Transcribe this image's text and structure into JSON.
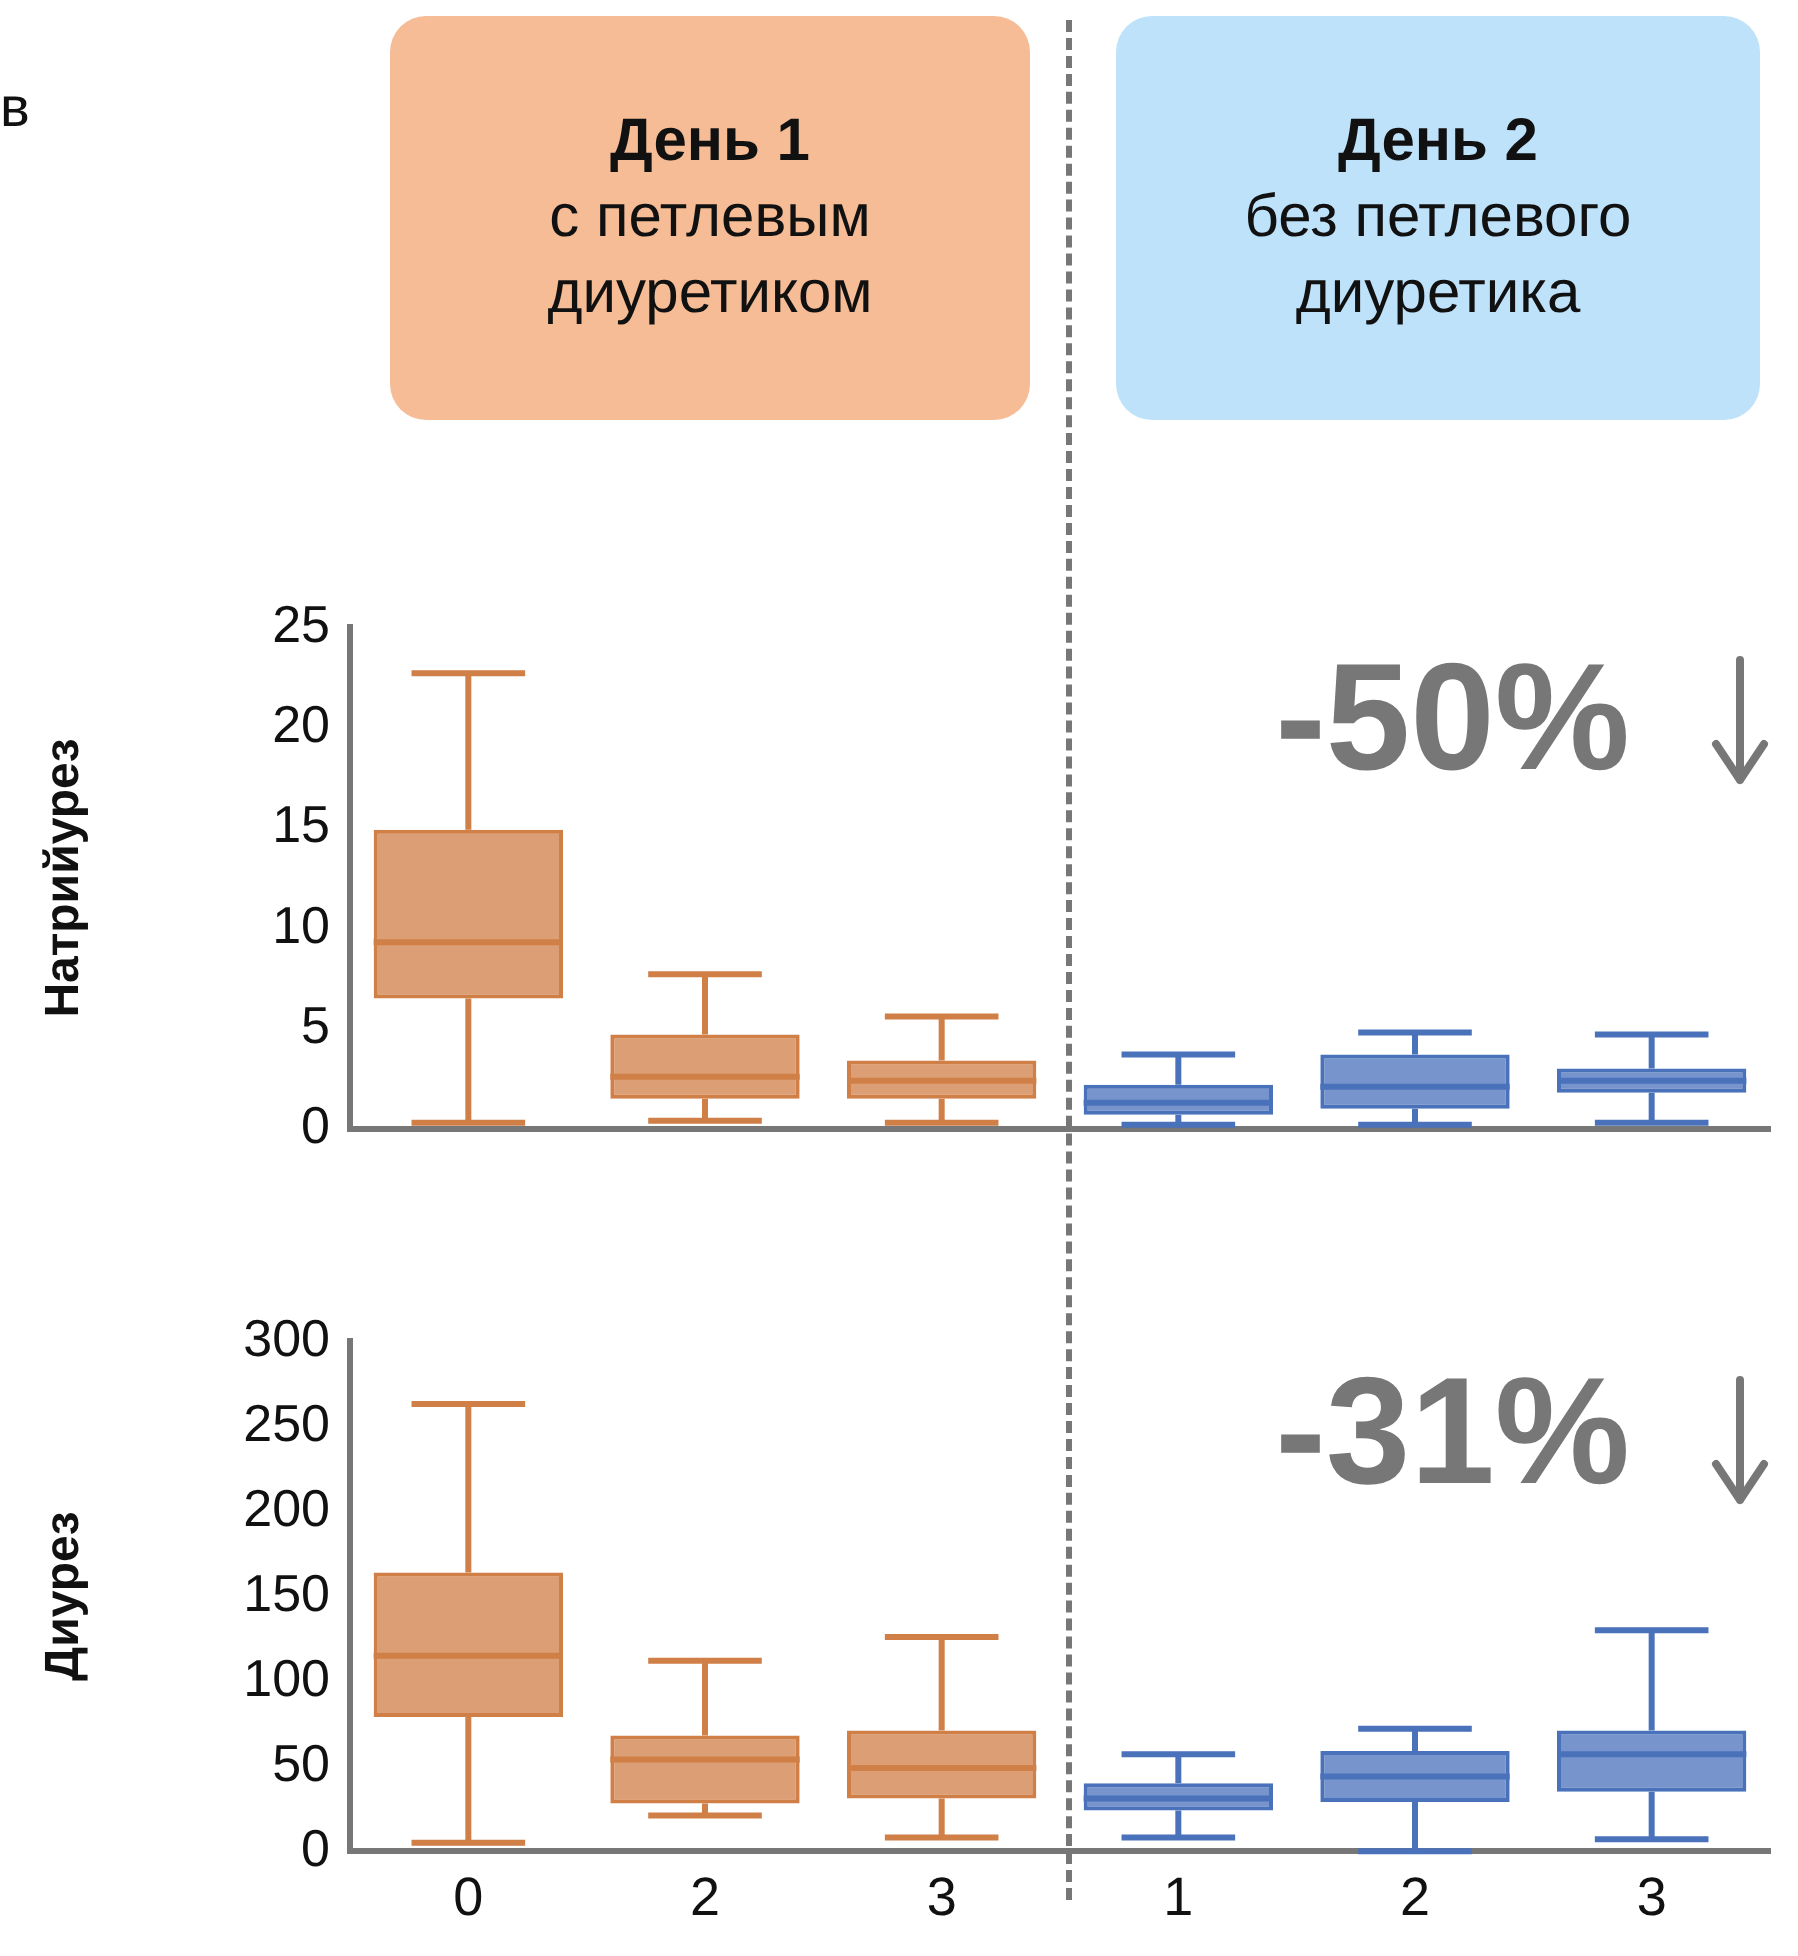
{
  "chart_data": [
    {
      "type": "box",
      "categories": [
        "0",
        "2",
        "3",
        "1",
        "2",
        "3"
      ],
      "ylabel": "Натрийурез",
      "ylim": [
        0,
        25
      ],
      "yticks": [
        0,
        5,
        10,
        15,
        20,
        25
      ],
      "tick_labels": "y",
      "grid": false,
      "colors": [
        "#d07f47",
        "#d07f47",
        "#d07f47",
        "#4a72bb",
        "#4a72bb",
        "#4a72bb"
      ],
      "boxes": [
        {
          "low": 0.3,
          "q1": 6.5,
          "median": 9.3,
          "q3": 14.9,
          "high": 22.7
        },
        {
          "low": 0.4,
          "q1": 1.5,
          "median": 2.6,
          "q3": 4.7,
          "high": 7.7
        },
        {
          "low": 0.3,
          "q1": 1.5,
          "median": 2.4,
          "q3": 3.4,
          "high": 5.6
        },
        {
          "low": 0.2,
          "q1": 0.7,
          "median": 1.3,
          "q3": 2.2,
          "high": 3.7
        },
        {
          "low": 0.2,
          "q1": 1.0,
          "median": 2.1,
          "q3": 3.7,
          "high": 4.8
        },
        {
          "low": 0.3,
          "q1": 1.8,
          "median": 2.4,
          "q3": 3.0,
          "high": 4.7
        }
      ],
      "annotations": [
        "в",
        "День 1",
        "с петлевым диуретиком",
        "День 2",
        "без петлевого диуретика",
        "-50%"
      ]
    },
    {
      "type": "box",
      "categories": [
        "0",
        "2",
        "3",
        "1",
        "2",
        "3"
      ],
      "ylabel": "Диурез",
      "ylim": [
        0,
        300
      ],
      "yticks": [
        0,
        50,
        100,
        150,
        200,
        250,
        300
      ],
      "grid": false,
      "colors": [
        "#d07f47",
        "#d07f47",
        "#d07f47",
        "#4a72bb",
        "#4a72bb",
        "#4a72bb"
      ],
      "boxes": [
        {
          "low": 5,
          "q1": 79,
          "median": 115,
          "q3": 164,
          "high": 263
        },
        {
          "low": 21,
          "q1": 28,
          "median": 54,
          "q3": 68,
          "high": 112
        },
        {
          "low": 8,
          "q1": 31,
          "median": 49,
          "q3": 71,
          "high": 126
        },
        {
          "low": 8,
          "q1": 24,
          "median": 31,
          "q3": 40,
          "high": 57
        },
        {
          "low": 0,
          "q1": 29,
          "median": 44,
          "q3": 59,
          "high": 72
        },
        {
          "low": 7,
          "q1": 35,
          "median": 57,
          "q3": 71,
          "high": 130
        }
      ],
      "annotations": [
        "-31%"
      ]
    }
  ]
}
